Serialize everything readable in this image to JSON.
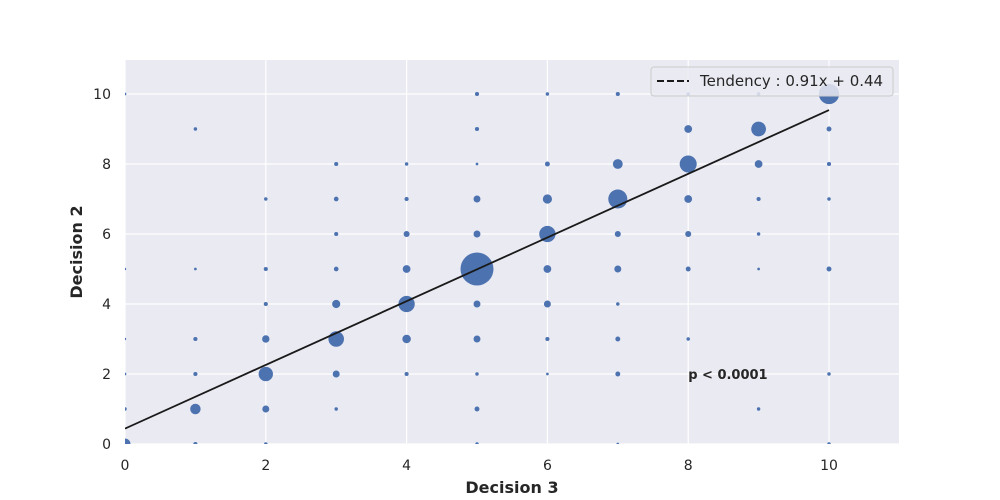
{
  "chart_data": {
    "type": "scatter",
    "xlabel": "Decision 3",
    "ylabel": "Decision 2",
    "xlim": [
      0,
      11
    ],
    "ylim": [
      0,
      11
    ],
    "xticks": [
      0,
      2,
      4,
      6,
      8,
      10
    ],
    "yticks": [
      0,
      2,
      4,
      6,
      8,
      10
    ],
    "grid": true,
    "background_color": "#eaeaf2",
    "marker_color": "#4c72b0",
    "line_color": "#1a1a1a",
    "legend": {
      "placement": "top-right",
      "entries": [
        {
          "label": "Tendency : 0.91x + 0.44",
          "style": "dashed-line"
        }
      ]
    },
    "trend": {
      "slope": 0.91,
      "intercept": 0.44,
      "x_range": [
        0,
        10
      ]
    },
    "annotation": {
      "text": "p < 0.0001",
      "x": 8,
      "y": 2
    },
    "points": [
      {
        "x": 0,
        "y": 0,
        "size": 100
      },
      {
        "x": 0,
        "y": 1,
        "size": 10
      },
      {
        "x": 0,
        "y": 2,
        "size": 6
      },
      {
        "x": 0,
        "y": 3,
        "size": 4
      },
      {
        "x": 0,
        "y": 5,
        "size": 4
      },
      {
        "x": 0,
        "y": 10,
        "size": 6
      },
      {
        "x": 1,
        "y": 0,
        "size": 14
      },
      {
        "x": 1,
        "y": 1,
        "size": 90
      },
      {
        "x": 1,
        "y": 2,
        "size": 14
      },
      {
        "x": 1,
        "y": 3,
        "size": 14
      },
      {
        "x": 1,
        "y": 5,
        "size": 6
      },
      {
        "x": 1,
        "y": 9,
        "size": 10
      },
      {
        "x": 2,
        "y": 0,
        "size": 10
      },
      {
        "x": 2,
        "y": 1,
        "size": 40
      },
      {
        "x": 2,
        "y": 2,
        "size": 170
      },
      {
        "x": 2,
        "y": 3,
        "size": 45
      },
      {
        "x": 2,
        "y": 4,
        "size": 14
      },
      {
        "x": 2,
        "y": 5,
        "size": 14
      },
      {
        "x": 2,
        "y": 7,
        "size": 10
      },
      {
        "x": 3,
        "y": 1,
        "size": 10
      },
      {
        "x": 3,
        "y": 2,
        "size": 40
      },
      {
        "x": 3,
        "y": 3,
        "size": 200
      },
      {
        "x": 3,
        "y": 4,
        "size": 55
      },
      {
        "x": 3,
        "y": 5,
        "size": 18
      },
      {
        "x": 3,
        "y": 6,
        "size": 14
      },
      {
        "x": 3,
        "y": 7,
        "size": 18
      },
      {
        "x": 3,
        "y": 8,
        "size": 14
      },
      {
        "x": 4,
        "y": 2,
        "size": 14
      },
      {
        "x": 4,
        "y": 3,
        "size": 60
      },
      {
        "x": 4,
        "y": 4,
        "size": 220
      },
      {
        "x": 4,
        "y": 5,
        "size": 50
      },
      {
        "x": 4,
        "y": 6,
        "size": 30
      },
      {
        "x": 4,
        "y": 7,
        "size": 14
      },
      {
        "x": 4,
        "y": 8,
        "size": 10
      },
      {
        "x": 5,
        "y": 0,
        "size": 10
      },
      {
        "x": 5,
        "y": 1,
        "size": 20
      },
      {
        "x": 5,
        "y": 2,
        "size": 10
      },
      {
        "x": 5,
        "y": 3,
        "size": 40
      },
      {
        "x": 5,
        "y": 4,
        "size": 40
      },
      {
        "x": 5,
        "y": 5,
        "size": 900
      },
      {
        "x": 5,
        "y": 6,
        "size": 40
      },
      {
        "x": 5,
        "y": 7,
        "size": 40
      },
      {
        "x": 5,
        "y": 8,
        "size": 6
      },
      {
        "x": 5,
        "y": 9,
        "size": 14
      },
      {
        "x": 5,
        "y": 10,
        "size": 14
      },
      {
        "x": 6,
        "y": 2,
        "size": 6
      },
      {
        "x": 6,
        "y": 3,
        "size": 14
      },
      {
        "x": 6,
        "y": 4,
        "size": 40
      },
      {
        "x": 6,
        "y": 5,
        "size": 50
      },
      {
        "x": 6,
        "y": 6,
        "size": 220
      },
      {
        "x": 6,
        "y": 7,
        "size": 70
      },
      {
        "x": 6,
        "y": 8,
        "size": 20
      },
      {
        "x": 6,
        "y": 10,
        "size": 10
      },
      {
        "x": 7,
        "y": 0,
        "size": 6
      },
      {
        "x": 7,
        "y": 2,
        "size": 20
      },
      {
        "x": 7,
        "y": 3,
        "size": 20
      },
      {
        "x": 7,
        "y": 4,
        "size": 10
      },
      {
        "x": 7,
        "y": 5,
        "size": 40
      },
      {
        "x": 7,
        "y": 6,
        "size": 30
      },
      {
        "x": 7,
        "y": 7,
        "size": 300
      },
      {
        "x": 7,
        "y": 8,
        "size": 80
      },
      {
        "x": 7,
        "y": 10,
        "size": 14
      },
      {
        "x": 8,
        "y": 3,
        "size": 10
      },
      {
        "x": 8,
        "y": 5,
        "size": 20
      },
      {
        "x": 8,
        "y": 6,
        "size": 30
      },
      {
        "x": 8,
        "y": 7,
        "size": 50
      },
      {
        "x": 8,
        "y": 8,
        "size": 240
      },
      {
        "x": 8,
        "y": 9,
        "size": 50
      },
      {
        "x": 8,
        "y": 10,
        "size": 10
      },
      {
        "x": 9,
        "y": 1,
        "size": 10
      },
      {
        "x": 9,
        "y": 5,
        "size": 6
      },
      {
        "x": 9,
        "y": 6,
        "size": 10
      },
      {
        "x": 9,
        "y": 7,
        "size": 14
      },
      {
        "x": 9,
        "y": 8,
        "size": 50
      },
      {
        "x": 9,
        "y": 9,
        "size": 180
      },
      {
        "x": 9,
        "y": 10,
        "size": 10
      },
      {
        "x": 10,
        "y": 0,
        "size": 10
      },
      {
        "x": 10,
        "y": 2,
        "size": 10
      },
      {
        "x": 10,
        "y": 5,
        "size": 20
      },
      {
        "x": 10,
        "y": 7,
        "size": 10
      },
      {
        "x": 10,
        "y": 8,
        "size": 14
      },
      {
        "x": 10,
        "y": 9,
        "size": 20
      },
      {
        "x": 10,
        "y": 10,
        "size": 340
      }
    ]
  }
}
